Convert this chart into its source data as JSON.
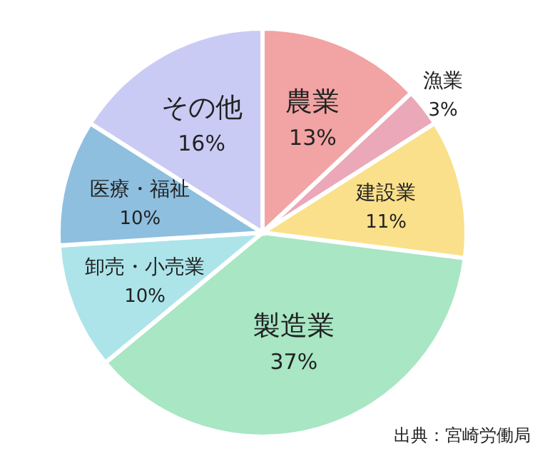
{
  "chart_data": {
    "type": "pie",
    "categories": [
      "農業",
      "漁業",
      "建設業",
      "製造業",
      "卸売・小売業",
      "医療・福祉",
      "その他"
    ],
    "values": [
      13,
      3,
      11,
      37,
      10,
      10,
      16
    ],
    "value_labels": [
      "13%",
      "3%",
      "11%",
      "37%",
      "10%",
      "10%",
      "16%"
    ],
    "colors": [
      "#f2a3a3",
      "#eaa8b8",
      "#fae08a",
      "#a8e6c4",
      "#ace4ea",
      "#8ebfdf",
      "#cacbf4"
    ],
    "annotations": [
      "出典：宮崎労働局"
    ]
  }
}
